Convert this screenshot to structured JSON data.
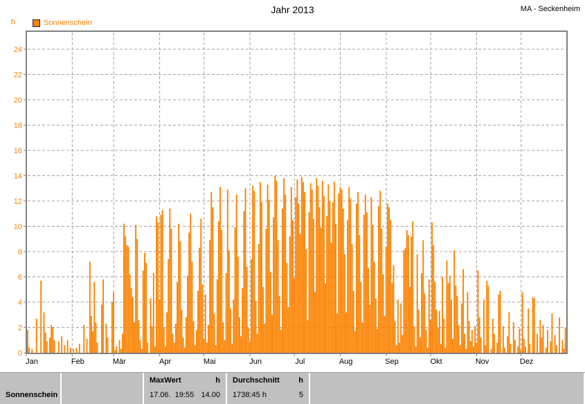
{
  "header": {
    "title": "Jahr 2013",
    "station": "MA - Seckenheim"
  },
  "legend": {
    "unit": "h",
    "label": "Sonnenschein"
  },
  "colors": {
    "bar": "#FB8200",
    "axis_label": "#FB8200",
    "frame": "#808080",
    "grid": "#A0A0A0",
    "table_bg": "#C0C0C0",
    "text": "#000000"
  },
  "chart_data": {
    "type": "bar",
    "title": "Jahr 2013",
    "subtitle": "MA - Seckenheim",
    "xlabel": "",
    "ylabel": "h",
    "ylim": [
      0,
      25.4
    ],
    "ytick_step": 2,
    "yticks": [
      0,
      2,
      4,
      6,
      8,
      10,
      12,
      14,
      16,
      18,
      20,
      22,
      24
    ],
    "grid": true,
    "legend_position": "top-left",
    "months": [
      "Jan",
      "Feb",
      "Mär",
      "Apr",
      "Mai",
      "Jun",
      "Jul",
      "Aug",
      "Sep",
      "Okt",
      "Nov",
      "Dez"
    ],
    "month_days": [
      31,
      28,
      31,
      30,
      31,
      30,
      31,
      31,
      30,
      31,
      30,
      31
    ],
    "series": [
      {
        "name": "Sonnenschein",
        "unit": "h",
        "values": [
          1.8,
          0.4,
          0,
          0.3,
          0,
          0,
          2.7,
          0,
          0,
          5.7,
          0,
          3.2,
          1.6,
          0.9,
          0,
          1.2,
          2.2,
          2.0,
          1.0,
          0,
          0,
          0.9,
          0,
          1.3,
          0,
          0.6,
          0,
          1.0,
          0,
          0.4,
          0,
          0.3,
          0,
          0.4,
          0,
          0.7,
          0,
          0,
          2.2,
          0,
          1.1,
          0,
          7.2,
          2.9,
          1.7,
          5.6,
          2.4,
          0.8,
          0,
          0,
          3.8,
          5.8,
          0,
          2.3,
          1.2,
          0,
          0,
          4.0,
          4.8,
          0.2,
          0.5,
          0,
          1.0,
          0.3,
          1.5,
          10.2,
          9.2,
          8.5,
          8.4,
          6.2,
          5.1,
          4.4,
          2.4,
          10.1,
          9.0,
          2.6,
          1.0,
          0.3,
          6.5,
          7.9,
          7.1,
          0.8,
          0,
          4.3,
          2.1,
          6.3,
          0.5,
          10.8,
          10.3,
          4.2,
          10.9,
          11.3,
          2.0,
          0.5,
          3.2,
          7.4,
          11.4,
          9.8,
          1.5,
          0.8,
          2.3,
          5.6,
          10.2,
          8.8,
          3.4,
          1.2,
          0.4,
          2.8,
          6.1,
          9.5,
          11.0,
          7.2,
          2.5,
          0.6,
          1.8,
          4.9,
          8.3,
          10.6,
          5.4,
          1.1,
          4.6,
          0.8,
          2.2,
          8.9,
          12.7,
          11.5,
          3.1,
          0.6,
          5.8,
          10.4,
          13.1,
          9.7,
          2.4,
          1.0,
          6.3,
          12.9,
          8.1,
          3.5,
          0.7,
          4.2,
          9.9,
          12.5,
          7.6,
          2.8,
          1.3,
          5.1,
          11.2,
          13.0,
          6.8,
          2.0,
          0.9,
          7.4,
          13.2,
          12.8,
          4.1,
          1.5,
          8.6,
          13.5,
          11.9,
          5.2,
          2.3,
          9.8,
          13.3,
          12.1,
          6.4,
          3.0,
          10.7,
          14.0,
          13.6,
          8.9,
          4.5,
          1.8,
          11.4,
          13.8,
          12.5,
          7.1,
          3.6,
          9.2,
          13.1,
          10.5,
          5.9,
          12.3,
          13.7,
          11.8,
          9.4,
          13.9,
          13.5,
          12.7,
          8.2,
          2.6,
          11.1,
          13.4,
          12.9,
          10.6,
          4.8,
          13.8,
          13.2,
          11.5,
          9.9,
          13.6,
          12.4,
          5.5,
          10.8,
          13.3,
          12.0,
          8.7,
          11.9,
          13.5,
          10.2,
          3.1,
          12.6,
          13.1,
          12.9,
          11.4,
          7.8,
          3.2,
          10.5,
          13.1,
          12.2,
          8.6,
          4.9,
          1.7,
          11.8,
          12.7,
          9.3,
          5.6,
          2.4,
          10.9,
          12.5,
          11.1,
          6.7,
          3.8,
          12.3,
          10.1,
          7.2,
          4.3,
          1.9,
          11.6,
          12.8,
          9.8,
          6.2,
          2.9,
          8.4,
          11.8,
          11.5,
          10.5,
          5.5,
          6.9,
          2.5,
          0.6,
          4.2,
          0.8,
          3.9,
          1.4,
          8.1,
          8.3,
          9.7,
          9.3,
          5.2,
          9.2,
          10.4,
          2.1,
          0.5,
          7.8,
          3.4,
          1.2,
          6.3,
          8.9,
          4.7,
          1.8,
          0.4,
          5.8,
          2.6,
          10.3,
          8.5,
          5.6,
          3.4,
          2.0,
          3.3,
          0.7,
          6.0,
          2.7,
          0.4,
          7.3,
          5.5,
          6.1,
          4.2,
          1.1,
          8.1,
          5.3,
          4.5,
          2.2,
          0.6,
          3.9,
          6.6,
          1.5,
          0.3,
          4.8,
          2.5,
          0.9,
          1.8,
          0.5,
          2.1,
          0.8,
          6.5,
          2.8,
          1.2,
          0,
          4.2,
          0.6,
          5.7,
          5.3,
          0,
          0.3,
          2.7,
          1.5,
          0,
          0.8,
          4.6,
          4.9,
          0,
          2.1,
          0.4,
          0,
          1.3,
          3.2,
          0.7,
          0,
          2.4,
          1.0,
          0,
          0.5,
          1.9,
          0.2,
          4.8,
          1.1,
          0.5,
          0,
          3.5,
          0.7,
          0,
          4.4,
          4.3,
          0,
          1.5,
          0,
          2.6,
          1.2,
          2.2,
          0,
          0.4,
          1.8,
          0,
          0.9,
          3.1,
          0,
          1.4,
          0.6,
          0,
          2.8,
          0,
          1.0,
          0.3,
          2.0,
          4.6
        ]
      }
    ],
    "annotations": {
      "max_datetime": "17.06.  19:55",
      "max_value": "14.00",
      "total": "1738:45 h",
      "average": "5"
    }
  },
  "stats_table": {
    "row_label": "Sonnenschein",
    "clipped_next_row_label": "MaxWert",
    "max": {
      "header": "MaxWert",
      "unit": "h",
      "value": "17.06.  19:55",
      "value_num": "14.00"
    },
    "avg": {
      "header": "Durchschnitt",
      "unit": "h",
      "value": "1738:45 h",
      "value_num": "5"
    }
  }
}
